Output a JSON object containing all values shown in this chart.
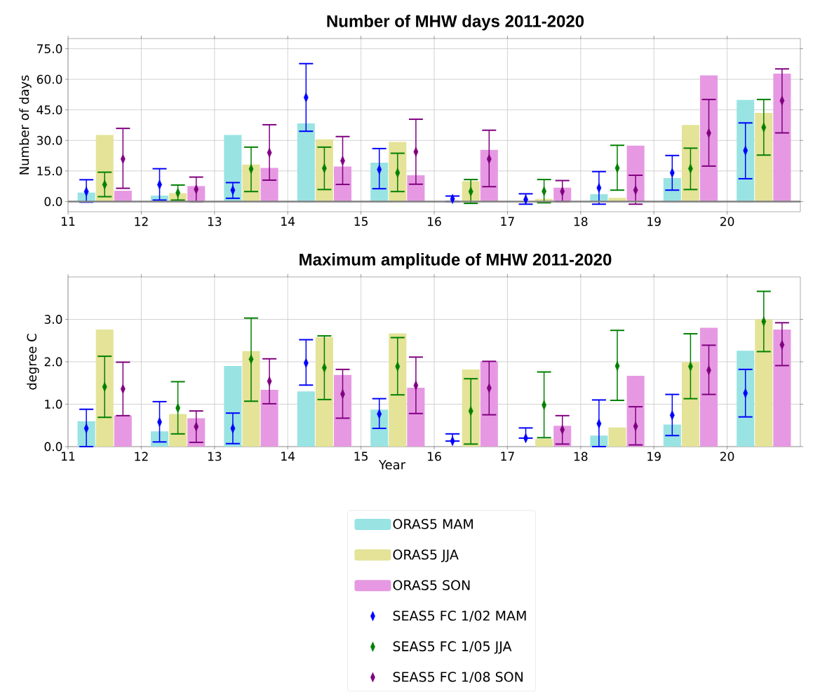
{
  "chart_data": [
    {
      "type": "bar",
      "title": "Number of MHW days 2011-2020",
      "ylabel": "Number of days",
      "xlim": [
        11,
        21
      ],
      "xticks": [
        11,
        12,
        13,
        14,
        15,
        16,
        17,
        18,
        19,
        20
      ],
      "ylim": [
        -5,
        80
      ],
      "yticks": [
        {
          "value": 0,
          "label": "0.0"
        },
        {
          "value": 15,
          "label": "15.0"
        },
        {
          "value": 30,
          "label": "30.0"
        },
        {
          "value": 45,
          "label": "45.0"
        },
        {
          "value": 60,
          "label": "60.0"
        },
        {
          "value": 75,
          "label": "75.0"
        }
      ],
      "grid": true,
      "legend": false,
      "ref_lines": [
        {
          "axis": "y",
          "value": 0,
          "color": "#808080"
        }
      ],
      "series": [
        {
          "color": "#99e3e3",
          "x": [
            11.25,
            12.25,
            13.25,
            14.25,
            15.25,
            16.25,
            17.25,
            18.25,
            19.25,
            20.25
          ],
          "values": [
            4.4,
            2.9,
            32.7,
            38.4,
            19.1,
            0,
            0,
            3.6,
            11.5,
            49.9
          ]
        },
        {
          "color": "#e4e397",
          "x": [
            11.5,
            12.5,
            13.5,
            14.5,
            15.5,
            16.5,
            17.5,
            18.5,
            19.5,
            20.5
          ],
          "values": [
            32.7,
            4.1,
            18.1,
            30.5,
            29.2,
            10.0,
            1.3,
            1.8,
            37.6,
            43.5
          ]
        },
        {
          "color": "#e699e2",
          "x": [
            11.75,
            12.75,
            13.75,
            14.75,
            15.75,
            16.75,
            17.75,
            18.75,
            19.75,
            20.75
          ],
          "values": [
            5.3,
            7.6,
            16.5,
            17.2,
            12.9,
            25.4,
            6.8,
            27.4,
            61.9,
            62.8
          ]
        },
        {
          "type": "scatter",
          "marker": "diamond",
          "color": "#0000ff",
          "x": [
            11.25,
            12.25,
            13.25,
            14.25,
            15.25,
            16.25,
            17.25,
            18.25,
            19.25,
            20.25
          ],
          "values": [
            4.9,
            8.3,
            5.6,
            51.1,
            15.7,
            1.3,
            1.0,
            6.7,
            14.1,
            25.0
          ],
          "errors": [
            [
              -0.3,
              10.7
            ],
            [
              0.7,
              16.1
            ],
            [
              1.6,
              9.3
            ],
            [
              34.5,
              67.7
            ],
            [
              6.3,
              26.0
            ],
            [
              0.0,
              2.7
            ],
            [
              -1.3,
              3.8
            ],
            [
              -1.3,
              14.7
            ],
            [
              5.6,
              22.6
            ],
            [
              11.2,
              38.6
            ]
          ]
        },
        {
          "type": "scatter",
          "marker": "diamond",
          "color": "#008000",
          "x": [
            11.5,
            12.5,
            13.5,
            14.5,
            15.5,
            16.5,
            17.5,
            18.5,
            19.5,
            20.5
          ],
          "values": [
            8.3,
            4.3,
            16.0,
            16.3,
            14.1,
            4.9,
            5.1,
            16.4,
            16.2,
            36.4
          ],
          "errors": [
            [
              2.4,
              14.4
            ],
            [
              0.7,
              8.1
            ],
            [
              4.9,
              26.7
            ],
            [
              5.9,
              26.7
            ],
            [
              4.9,
              23.7
            ],
            [
              -0.9,
              10.8
            ],
            [
              -0.6,
              10.8
            ],
            [
              5.6,
              27.6
            ],
            [
              5.9,
              26.2
            ],
            [
              22.8,
              50.1
            ]
          ]
        },
        {
          "type": "scatter",
          "marker": "diamond",
          "color": "#800080",
          "x": [
            11.75,
            12.75,
            13.75,
            14.75,
            15.75,
            16.75,
            17.75,
            18.75,
            19.75,
            20.75
          ],
          "values": [
            20.9,
            6.0,
            24.0,
            20.0,
            24.4,
            20.9,
            5.0,
            5.6,
            33.6,
            49.5
          ],
          "errors": [
            [
              6.5,
              35.9
            ],
            [
              -0.1,
              12.0
            ],
            [
              10.5,
              37.7
            ],
            [
              8.4,
              31.9
            ],
            [
              8.5,
              40.4
            ],
            [
              7.3,
              35.0
            ],
            [
              0.0,
              10.3
            ],
            [
              -1.3,
              12.9
            ],
            [
              17.4,
              50.1
            ],
            [
              33.7,
              65.1
            ]
          ]
        }
      ]
    },
    {
      "type": "bar",
      "title": "Maximum amplitude of MHW 2011-2020",
      "xlabel": "Year",
      "ylabel": "degree C",
      "xlim": [
        11,
        21
      ],
      "xticks": [
        11,
        12,
        13,
        14,
        15,
        16,
        17,
        18,
        19,
        20
      ],
      "ylim": [
        0,
        4
      ],
      "yticks": [
        {
          "value": 0,
          "label": "0.0"
        },
        {
          "value": 1,
          "label": "1.0"
        },
        {
          "value": 2,
          "label": "2.0"
        },
        {
          "value": 3,
          "label": "3.0"
        }
      ],
      "grid": true,
      "legend": "bottom",
      "series": [
        {
          "name": "ORAS5 MAM",
          "color": "#99e3e3",
          "x": [
            11.25,
            12.25,
            13.25,
            14.25,
            15.25,
            16.25,
            17.25,
            18.25,
            19.25,
            20.25
          ],
          "values": [
            0.6,
            0.36,
            1.9,
            1.3,
            0.87,
            0,
            0,
            0.26,
            0.52,
            2.26
          ]
        },
        {
          "name": "ORAS5 JJA",
          "color": "#e4e397",
          "x": [
            11.5,
            12.5,
            13.5,
            14.5,
            15.5,
            16.5,
            17.5,
            18.5,
            19.5,
            20.5
          ],
          "values": [
            2.76,
            0.77,
            2.25,
            2.58,
            2.67,
            1.82,
            0.18,
            0.45,
            1.99,
            3.0
          ]
        },
        {
          "name": "ORAS5 SON",
          "color": "#e699e2",
          "x": [
            11.75,
            12.75,
            13.75,
            14.75,
            15.75,
            16.75,
            17.75,
            18.75,
            19.75,
            20.75
          ],
          "values": [
            0.73,
            0.67,
            1.34,
            1.69,
            1.39,
            2.01,
            0.49,
            1.67,
            2.8,
            2.76
          ]
        },
        {
          "name": "SEAS5 FC 1/02 MAM",
          "type": "scatter",
          "marker": "diamond",
          "color": "#0000ff",
          "x": [
            11.25,
            12.25,
            13.25,
            14.25,
            15.25,
            16.25,
            17.25,
            18.25,
            19.25,
            20.25
          ],
          "values": [
            0.43,
            0.58,
            0.43,
            1.97,
            0.77,
            0.13,
            0.2,
            0.54,
            0.74,
            1.26
          ],
          "errors": [
            [
              0.0,
              0.88
            ],
            [
              0.11,
              1.06
            ],
            [
              0.07,
              0.79
            ],
            [
              1.45,
              2.52
            ],
            [
              0.43,
              1.13
            ],
            [
              0.13,
              0.3
            ],
            [
              0.2,
              0.44
            ],
            [
              0.0,
              1.1
            ],
            [
              0.26,
              1.23
            ],
            [
              0.7,
              1.82
            ]
          ]
        },
        {
          "name": "SEAS5 FC 1/05 JJA",
          "type": "scatter",
          "marker": "diamond",
          "color": "#008000",
          "x": [
            11.5,
            12.5,
            13.5,
            14.5,
            15.5,
            16.5,
            17.5,
            18.5,
            19.5,
            20.5
          ],
          "values": [
            1.41,
            0.91,
            2.06,
            1.86,
            1.89,
            0.84,
            0.98,
            1.9,
            1.89,
            2.95
          ],
          "errors": [
            [
              0.69,
              2.13
            ],
            [
              0.3,
              1.53
            ],
            [
              1.07,
              3.03
            ],
            [
              1.11,
              2.61
            ],
            [
              1.22,
              2.57
            ],
            [
              0.06,
              1.6
            ],
            [
              0.21,
              1.76
            ],
            [
              1.09,
              2.74
            ],
            [
              1.13,
              2.66
            ],
            [
              2.24,
              3.66
            ]
          ]
        },
        {
          "name": "SEAS5 FC 1/08 SON",
          "type": "scatter",
          "marker": "diamond",
          "color": "#800080",
          "x": [
            11.75,
            12.75,
            13.75,
            14.75,
            15.75,
            16.75,
            17.75,
            18.75,
            19.75,
            20.75
          ],
          "values": [
            1.36,
            0.47,
            1.54,
            1.24,
            1.44,
            1.38,
            0.4,
            0.48,
            1.8,
            2.4
          ],
          "errors": [
            [
              0.73,
              1.99
            ],
            [
              0.1,
              0.84
            ],
            [
              1.01,
              2.07
            ],
            [
              0.67,
              1.82
            ],
            [
              0.78,
              2.11
            ],
            [
              0.75,
              2.01
            ],
            [
              0.06,
              0.73
            ],
            [
              0.04,
              0.94
            ],
            [
              1.23,
              2.39
            ],
            [
              1.91,
              2.92
            ]
          ]
        }
      ]
    }
  ]
}
